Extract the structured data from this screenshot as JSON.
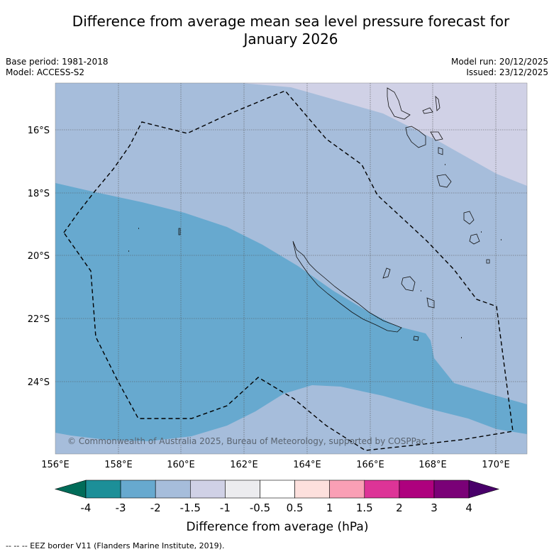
{
  "title": {
    "line1": "Difference from average mean sea level pressure forecast for",
    "line2": "January 2026"
  },
  "meta": {
    "base_period": "Base period: 1981-2018",
    "model": "Model: ACCESS-S2",
    "model_run": "Model run: 20/12/2025",
    "issued": "Issued: 23/12/2025"
  },
  "map": {
    "lon_range": [
      156,
      171
    ],
    "lat_range": [
      -26.0,
      -14.5
    ],
    "lon_ticks": [
      "156°E",
      "158°E",
      "160°E",
      "162°E",
      "164°E",
      "166°E",
      "168°E",
      "170°E"
    ],
    "lat_ticks": [
      "16°S",
      "18°S",
      "20°S",
      "22°S",
      "24°S"
    ],
    "copyright": "© Commonwealth of Australia 2025, Bureau of Meteorology, supported by COSPPac",
    "colors": {
      "band_lt_m1_5": "#d0d1e6",
      "band_m2_m1_5": "#a6bddb",
      "band_m3_m2": "#67a9cf"
    }
  },
  "colorbar": {
    "label": "Difference from average (hPa)",
    "ticks": [
      "-4",
      "-3",
      "-2",
      "-1.5",
      "-1",
      "-0.5",
      "0.5",
      "1",
      "1.5",
      "2",
      "3",
      "4"
    ],
    "colors": [
      "#1c8f98",
      "#67a9cf",
      "#a6bddb",
      "#d0d1e6",
      "#ececef",
      "#ffffff",
      "#fde0dd",
      "#fa9fb5",
      "#dd3497",
      "#ae017e",
      "#7a0177"
    ],
    "under_color": "#016c59",
    "over_color": "#49006a"
  },
  "footer": "--  --  -- EEZ border V11 (Flanders Marine Institute, 2019)."
}
